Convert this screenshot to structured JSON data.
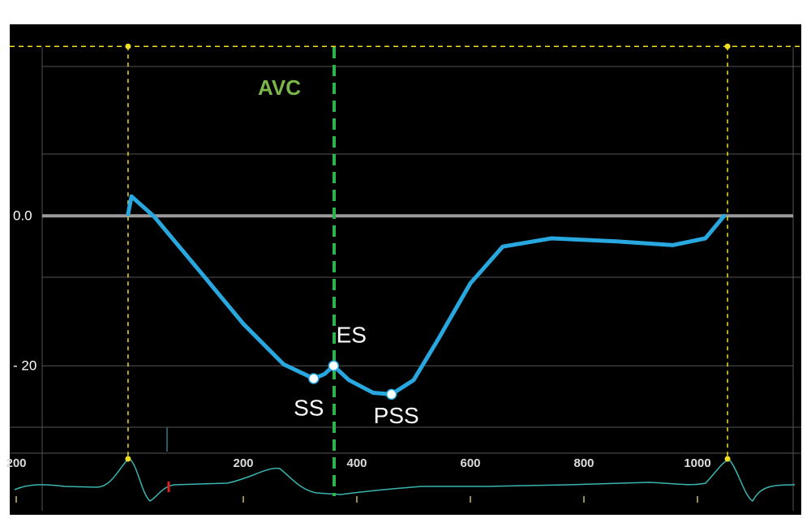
{
  "chart_data": {
    "type": "line",
    "x": [
      -3,
      3,
      43,
      129,
      200,
      271,
      324,
      343,
      359,
      386,
      429,
      461,
      500,
      543,
      600,
      657,
      743,
      857,
      957,
      1014,
      1047
    ],
    "series": [
      {
        "color": "#29a8e0",
        "values": [
          0.2,
          2.6,
          -0.1,
          -7.9,
          -14.4,
          -19.8,
          -21.7,
          -21.1,
          -20,
          -21.9,
          -23.6,
          -23.8,
          -21.9,
          -16.5,
          -9,
          -4.1,
          -3,
          -3.4,
          -3.9,
          -3,
          0
        ]
      }
    ],
    "xlim": [
      -210,
      1180
    ],
    "ylim": [
      -31,
      25
    ],
    "xticks": [
      {
        "value": -200,
        "label": "200"
      },
      200,
      400,
      600,
      800,
      1000
    ],
    "yticks": [
      {
        "value": 0,
        "label": "0.0"
      },
      {
        "value": -20,
        "label": "- 20"
      }
    ],
    "annotations": [
      {
        "label": "SS",
        "x": 324,
        "y": -21.7
      },
      {
        "label": "ES",
        "x": 359,
        "y": -20
      },
      {
        "label": "PSS",
        "x": 461,
        "y": -23.8
      }
    ],
    "reference_line": {
      "label": "AVC",
      "x": 360,
      "color": "#2db34a"
    },
    "cursor_x": [
      -3,
      1053
    ],
    "cursor_y": 22.6
  }
}
